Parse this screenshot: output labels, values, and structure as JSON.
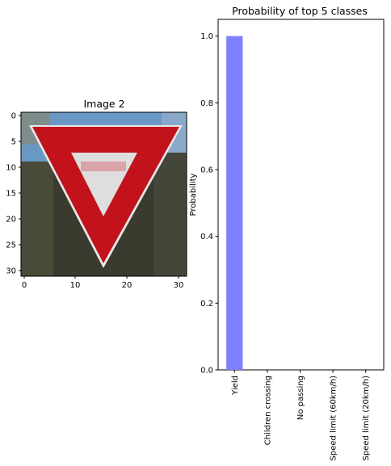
{
  "image_panel": {
    "title": "Image 2",
    "xticks": [
      "0",
      "10",
      "20",
      "30"
    ],
    "yticks": [
      "0",
      "5",
      "10",
      "15",
      "20",
      "25",
      "30"
    ],
    "image_description_hidden": true
  },
  "chart_data": {
    "type": "bar",
    "title": "Probability of top 5 classes",
    "xlabel": "",
    "ylabel": "Probability",
    "categories": [
      "Yield",
      "Children crossing",
      "No passing",
      "Speed limit (60km/h)",
      "Speed limit (20km/h)"
    ],
    "values": [
      1.0,
      0.0,
      0.0,
      0.0,
      0.0
    ],
    "ylim": [
      0,
      1.05
    ],
    "yticks": [
      "0.0",
      "0.2",
      "0.4",
      "0.6",
      "0.8",
      "1.0"
    ],
    "bar_color": "#8080ff",
    "grid": false,
    "legend": "none"
  },
  "sign_colors": {
    "red": "#c2121c",
    "white": "#dedede",
    "sky": "#6fa3d6",
    "trees": "#3b3a2e"
  }
}
